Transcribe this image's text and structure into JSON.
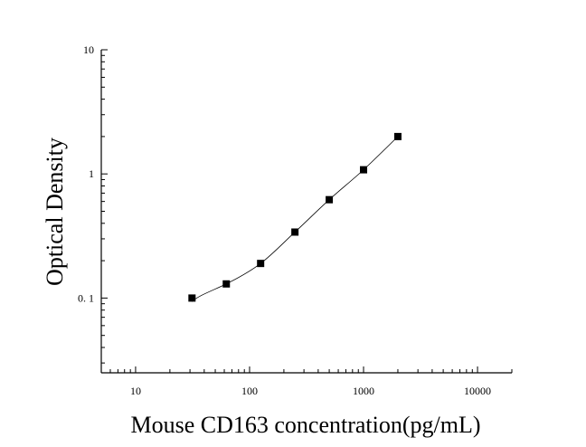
{
  "chart_data": {
    "type": "scatter",
    "xlabel": "Mouse CD163 concentration(pg/mL)",
    "ylabel": "Optical Density",
    "x_scale": "log",
    "y_scale": "log",
    "xlim": [
      5,
      20000
    ],
    "ylim": [
      0.025,
      10
    ],
    "x_ticks": [
      10,
      100,
      1000,
      10000
    ],
    "x_tick_labels": [
      "10",
      "100",
      "1000",
      "10000"
    ],
    "y_ticks": [
      0.1,
      1,
      10
    ],
    "y_tick_labels": [
      "0. 1",
      "1",
      "10"
    ],
    "grid": false,
    "legend": "none",
    "marker": "square",
    "fit_curve": true,
    "colors": {
      "marker": "#000000",
      "curve": "#000000",
      "axis": "#000000"
    },
    "series": [
      {
        "x": [
          31.25,
          62.5,
          125,
          250,
          500,
          1000,
          2000
        ],
        "y": [
          0.1,
          0.13,
          0.19,
          0.34,
          0.62,
          1.08,
          2.0
        ]
      }
    ]
  }
}
